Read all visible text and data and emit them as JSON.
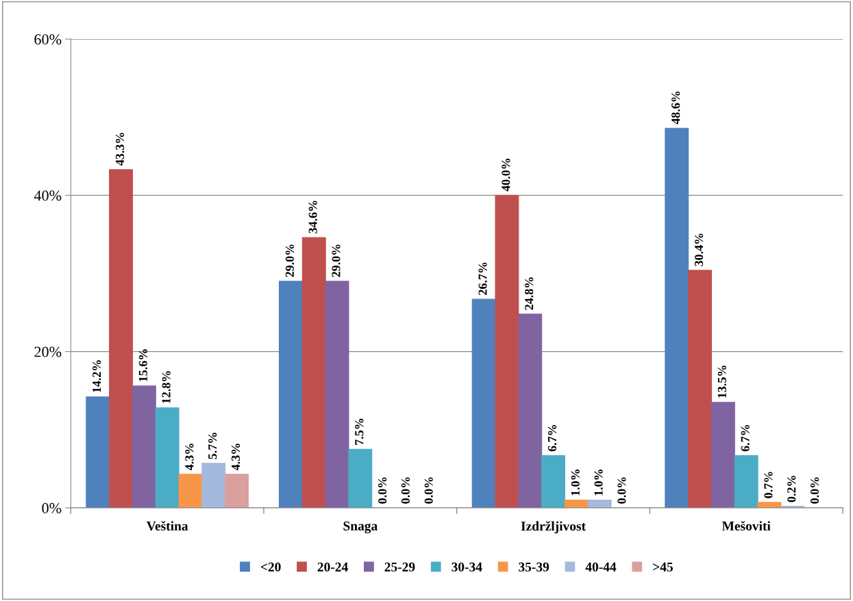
{
  "chart_data": {
    "type": "bar",
    "categories": [
      "Veština",
      "Snaga",
      "Izdržljivost",
      "Mešoviti"
    ],
    "series": [
      {
        "name": "<20",
        "color": "#4f81bd",
        "values": [
          14.2,
          29.0,
          26.7,
          48.6
        ],
        "value_labels": [
          "14.2%",
          "29.0%",
          "26.7%",
          "48.6%"
        ]
      },
      {
        "name": "20-24",
        "color": "#c0504d",
        "values": [
          43.3,
          34.6,
          40.0,
          30.4
        ],
        "value_labels": [
          "43.3%",
          "34.6%",
          "40.0%",
          "30.4%"
        ]
      },
      {
        "name": "25-29",
        "color": "#8064a2",
        "values": [
          15.6,
          29.0,
          24.8,
          13.5
        ],
        "value_labels": [
          "15.6%",
          "29.0%",
          "24.8%",
          "13.5%"
        ]
      },
      {
        "name": "30-34",
        "color": "#4bacc6",
        "values": [
          12.8,
          7.5,
          6.7,
          6.7
        ],
        "value_labels": [
          "12.8%",
          "7.5%",
          "6.7%",
          "6.7%"
        ]
      },
      {
        "name": "35-39",
        "color": "#f79646",
        "values": [
          4.3,
          0.0,
          1.0,
          0.7
        ],
        "value_labels": [
          "4.3%",
          "0.0%",
          "1.0%",
          "0.7%"
        ]
      },
      {
        "name": "40-44",
        "color": "#a5b9dc",
        "values": [
          5.7,
          0.0,
          1.0,
          0.2
        ],
        "value_labels": [
          "5.7%",
          "0.0%",
          "1.0%",
          "0.2%"
        ]
      },
      {
        "name": ">45",
        "color": "#d9a09e",
        "values": [
          4.3,
          0.0,
          0.0,
          0.0
        ],
        "value_labels": [
          "4.3%",
          "0.0%",
          "0.0%",
          "0.0%"
        ]
      }
    ],
    "ylim": [
      0,
      60
    ],
    "yticks": [
      {
        "value": 0,
        "label": "0%"
      },
      {
        "value": 20,
        "label": "20%"
      },
      {
        "value": 40,
        "label": "40%"
      },
      {
        "value": 60,
        "label": "60%"
      }
    ],
    "grid": "y",
    "legend": "bottom"
  }
}
